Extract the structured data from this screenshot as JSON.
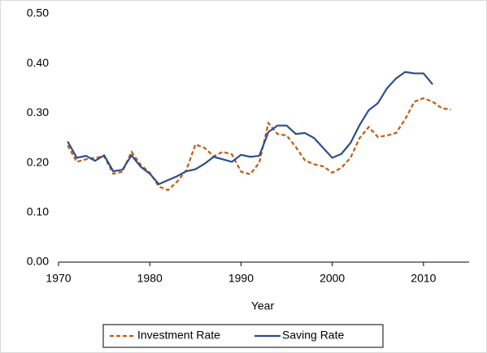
{
  "chart_data": {
    "type": "line",
    "x_label": "Year",
    "x": [
      1971,
      1972,
      1973,
      1974,
      1975,
      1976,
      1977,
      1978,
      1979,
      1980,
      1981,
      1982,
      1983,
      1984,
      1985,
      1986,
      1987,
      1988,
      1989,
      1990,
      1991,
      1992,
      1993,
      1994,
      1995,
      1996,
      1997,
      1998,
      1999,
      2000,
      2001,
      2002,
      2003,
      2004,
      2005,
      2006,
      2007,
      2008,
      2009,
      2010,
      2011,
      2012,
      2013
    ],
    "series": [
      {
        "name": "Investment Rate",
        "color": "#c55a11",
        "dashed": true,
        "values": [
          0.235,
          0.202,
          0.207,
          0.21,
          0.213,
          0.178,
          0.182,
          0.222,
          0.196,
          0.18,
          0.152,
          0.145,
          0.162,
          0.185,
          0.237,
          0.23,
          0.213,
          0.222,
          0.217,
          0.182,
          0.177,
          0.2,
          0.28,
          0.258,
          0.255,
          0.232,
          0.205,
          0.197,
          0.193,
          0.18,
          0.19,
          0.21,
          0.25,
          0.272,
          0.252,
          0.255,
          0.26,
          0.288,
          0.323,
          0.33,
          0.323,
          0.31,
          0.307
        ]
      },
      {
        "name": "Saving Rate",
        "color": "#2e4d8c",
        "dashed": false,
        "values": [
          0.243,
          0.21,
          0.214,
          0.204,
          0.215,
          0.183,
          0.186,
          0.215,
          0.192,
          0.178,
          0.157,
          0.165,
          0.173,
          0.183,
          0.187,
          0.198,
          0.212,
          0.207,
          0.202,
          0.216,
          0.212,
          0.214,
          0.262,
          0.275,
          0.275,
          0.258,
          0.26,
          0.25,
          0.23,
          0.21,
          0.218,
          0.24,
          0.276,
          0.306,
          0.32,
          0.35,
          0.37,
          0.383,
          0.38,
          0.38,
          0.358,
          null,
          null
        ]
      }
    ],
    "xlim": [
      1970,
      2015
    ],
    "xticks": [
      1970,
      1980,
      1990,
      2000,
      2010
    ],
    "ylim": [
      0,
      0.5
    ],
    "yticks": [
      {
        "value": 0,
        "label": "0.00"
      },
      {
        "value": 0.1,
        "label": "0.10"
      },
      {
        "value": 0.2,
        "label": "0.20"
      },
      {
        "value": 0.3,
        "label": "0.30"
      },
      {
        "value": 0.4,
        "label": "0.40"
      },
      {
        "value": 0.5,
        "label": "0.50"
      }
    ],
    "grid": false,
    "legend": "bottom"
  }
}
